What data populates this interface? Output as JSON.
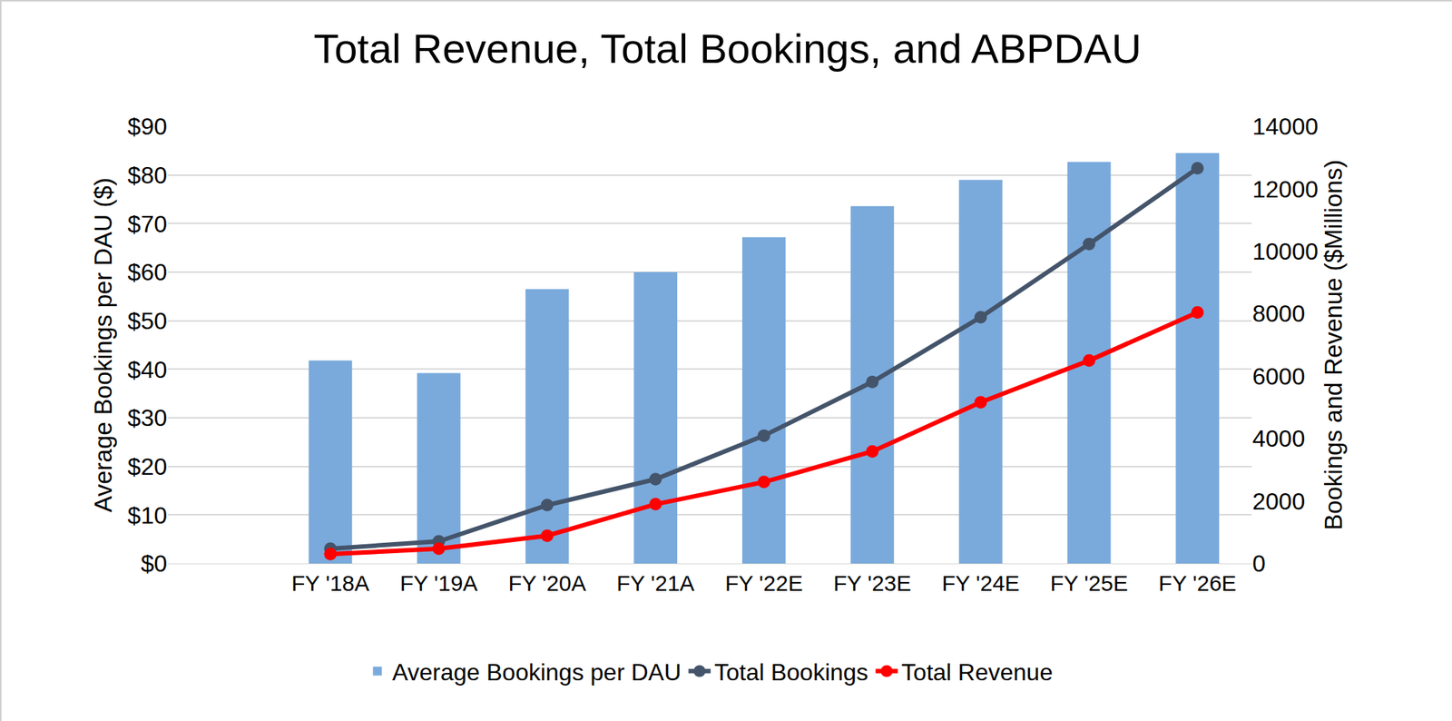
{
  "chart_data": {
    "type": "bar",
    "title": "Total Revenue, Total Bookings, and ABPDAU",
    "y_label": "Average Bookings per DAU ($)",
    "y2_label": "Bookings and Revenue ($Millions)",
    "categories": [
      null,
      "FY '18A",
      "FY '19A",
      "FY '20A",
      "FY '21A",
      "FY '22E",
      "FY '23E",
      "FY '24E",
      "FY '25E",
      "FY '26E"
    ],
    "series": [
      {
        "name": "Average Bookings per DAU",
        "type": "bar",
        "color": "#7aaadc",
        "values": [
          null,
          41.8,
          39.2,
          56.5,
          60.0,
          67.2,
          73.6,
          79.0,
          82.7,
          84.5
        ]
      },
      {
        "name": "Total Bookings",
        "type": "line",
        "color": "#44546a",
        "axis": "y2",
        "marker": "circle",
        "values": [
          null,
          475,
          710,
          1870,
          2700,
          4095,
          5815,
          7890,
          10235,
          12660
        ]
      },
      {
        "name": "Total Revenue",
        "type": "line",
        "color": "#ff0000",
        "axis": "y2",
        "marker": "circle",
        "values": [
          null,
          300,
          475,
          890,
          1900,
          2610,
          3590,
          5165,
          6500,
          8040
        ]
      }
    ],
    "ylim": [
      0,
      90
    ],
    "yticks": [
      {
        "value": 0,
        "label": "$0"
      },
      {
        "value": 10,
        "label": "$10"
      },
      {
        "value": 20,
        "label": "$20"
      },
      {
        "value": 30,
        "label": "$30"
      },
      {
        "value": 40,
        "label": "$40"
      },
      {
        "value": 50,
        "label": "$50"
      },
      {
        "value": 60,
        "label": "$60"
      },
      {
        "value": 70,
        "label": "$70"
      },
      {
        "value": 80,
        "label": "$80"
      },
      {
        "value": 90,
        "label": "$90"
      }
    ],
    "y2lim": [
      0,
      14000
    ],
    "y2ticks": [
      0,
      2000,
      4000,
      6000,
      8000,
      10000,
      12000,
      14000
    ],
    "grid": true,
    "legend": "bottom"
  }
}
